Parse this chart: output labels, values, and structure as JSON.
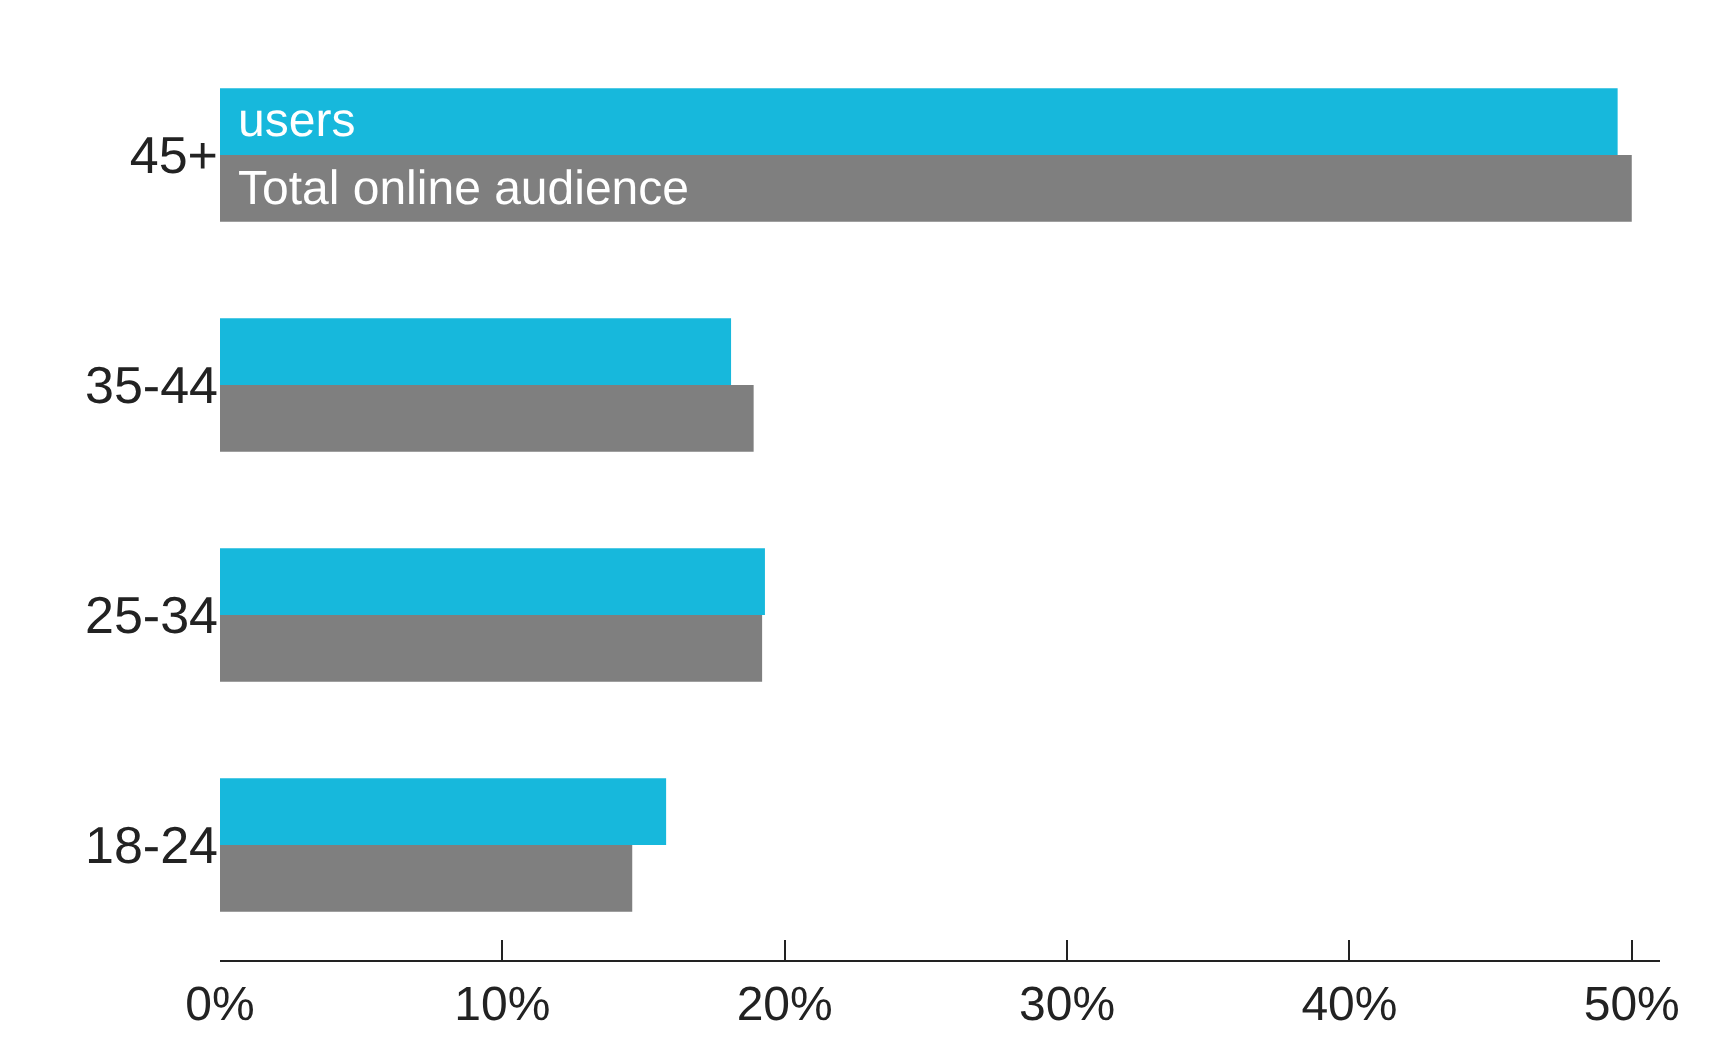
{
  "chart_data": {
    "type": "bar",
    "orientation": "horizontal",
    "categories": [
      "45+",
      "35-44",
      "25-34",
      "18-24"
    ],
    "series": [
      {
        "name": "users",
        "color": "#17b8dc",
        "values": [
          49.5,
          18.1,
          19.3,
          15.8
        ]
      },
      {
        "name": "Total online audience",
        "color": "#7f7f7f",
        "values": [
          50,
          18.9,
          19.2,
          14.6
        ]
      }
    ],
    "xlim": [
      0,
      51
    ],
    "xticks": [
      {
        "value": 0,
        "label": "0%"
      },
      {
        "value": 10,
        "label": "10%"
      },
      {
        "value": 20,
        "label": "20%"
      },
      {
        "value": 30,
        "label": "30%"
      },
      {
        "value": 40,
        "label": "40%"
      },
      {
        "value": 50,
        "label": "50%"
      }
    ],
    "legend": false
  }
}
